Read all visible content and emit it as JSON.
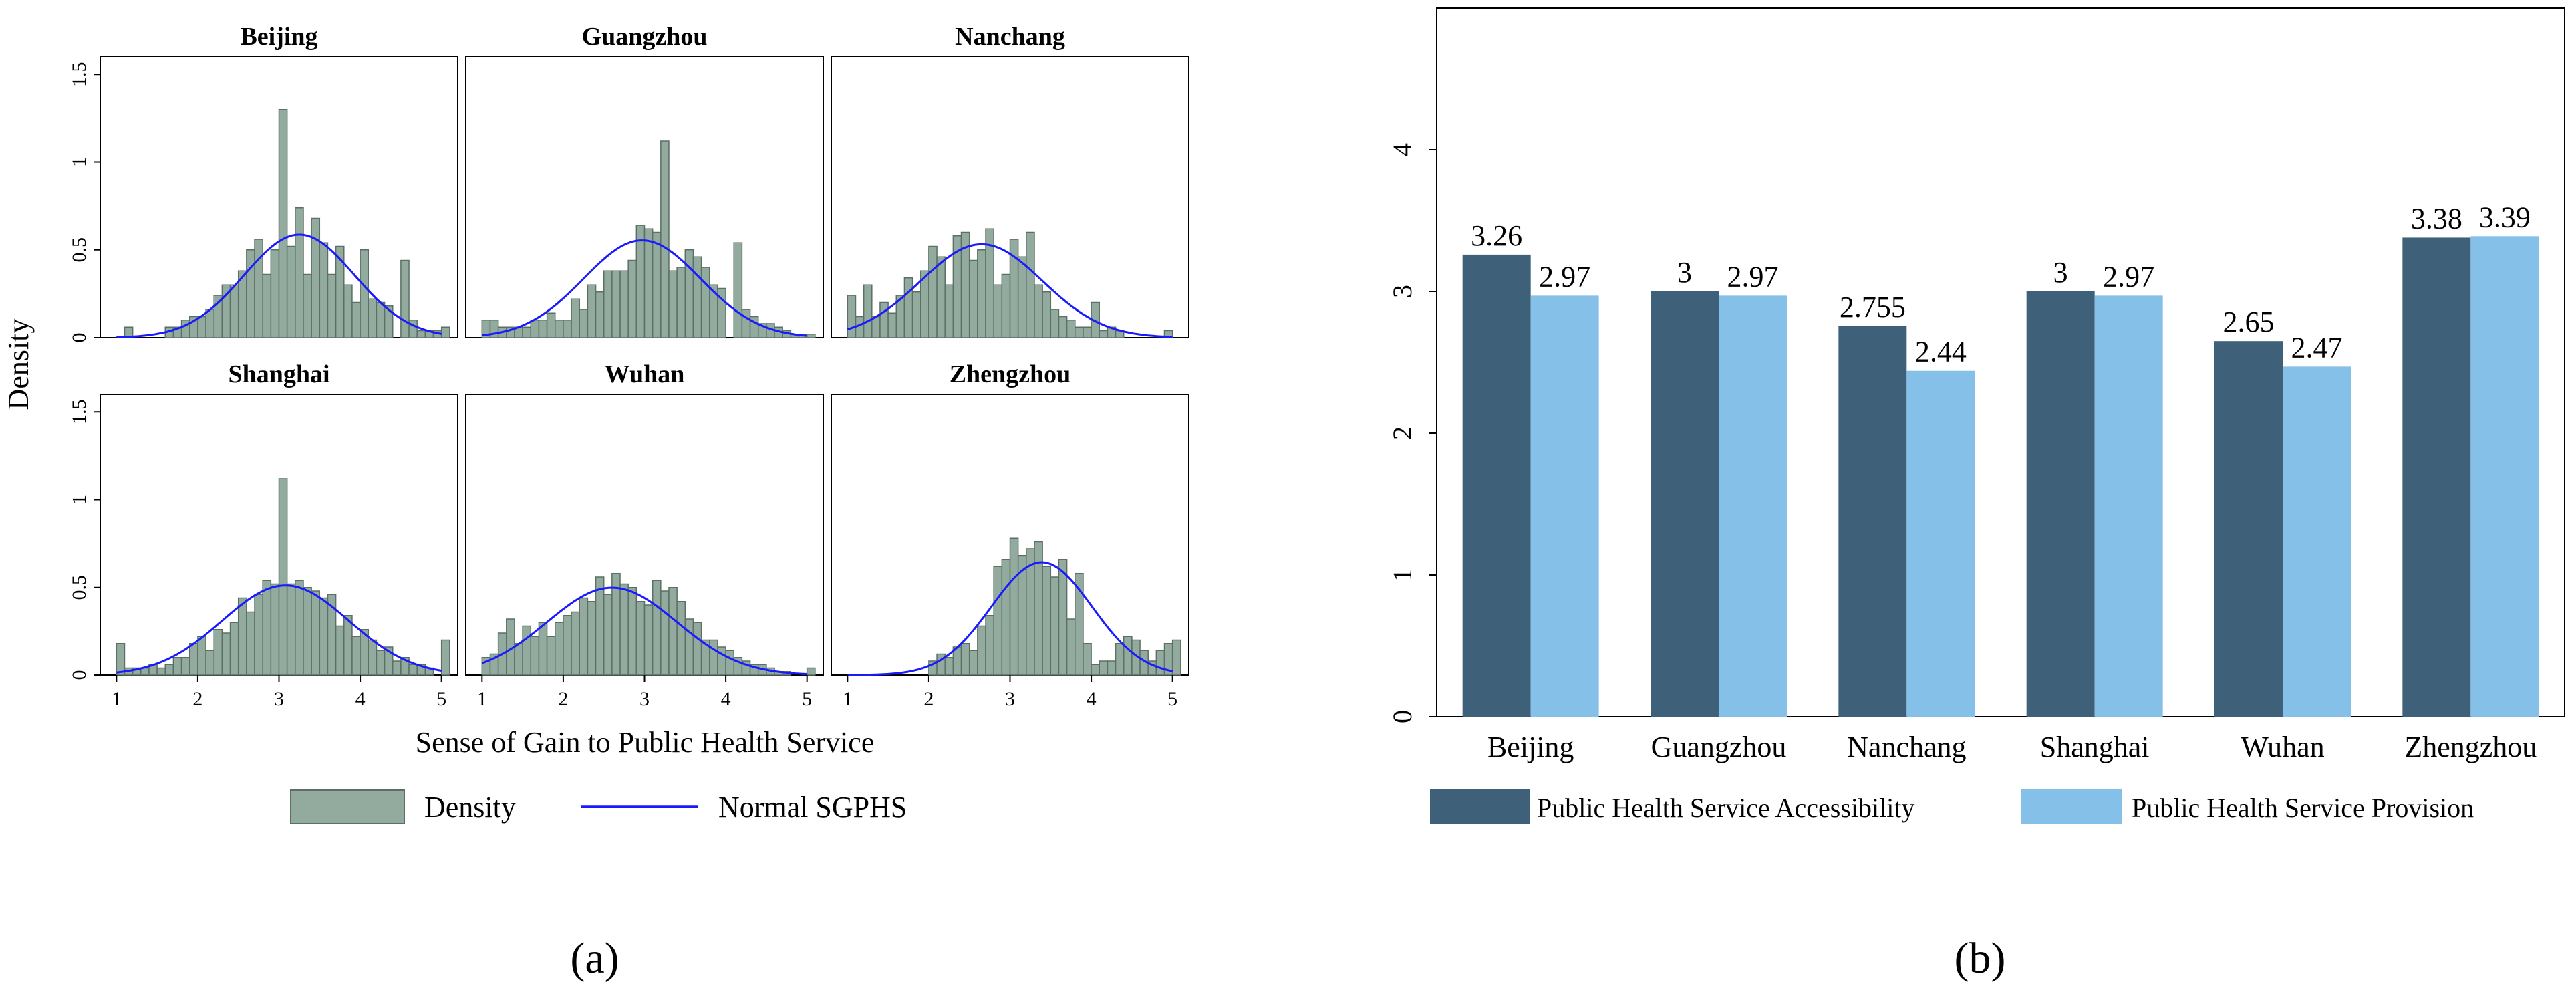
{
  "chart_data": [
    {
      "type": "histogram",
      "panel_label": "a",
      "ylabel": "Density",
      "xlabel": "Sense of Gain to Public Health Service",
      "x_ticks": [
        "1",
        "2",
        "3",
        "4",
        "5"
      ],
      "y_ticks": [
        "0",
        "0.5",
        "1",
        "1.5"
      ],
      "xlim": [
        0.8,
        5.2
      ],
      "ylim": [
        0,
        1.6
      ],
      "bin_start": 1.0,
      "bin_width": 0.1,
      "legend": {
        "bars": "Density",
        "line": "Normal SGPHS"
      },
      "colors": {
        "bar_fill": "#92ab9e",
        "bar_stroke": "#5b6f64",
        "line": "#1a1aff"
      },
      "panels": [
        {
          "title": "Beijing",
          "normal": {
            "mean": 3.25,
            "sd": 0.68
          },
          "densities": [
            0.0,
            0.06,
            0.0,
            0.0,
            0.0,
            0.0,
            0.06,
            0.06,
            0.1,
            0.12,
            0.12,
            0.16,
            0.24,
            0.3,
            0.3,
            0.38,
            0.5,
            0.56,
            0.36,
            0.5,
            1.3,
            0.52,
            0.74,
            0.36,
            0.68,
            0.54,
            0.36,
            0.52,
            0.3,
            0.2,
            0.5,
            0.22,
            0.2,
            0.18,
            0.0,
            0.44,
            0.1,
            0.04,
            0.04,
            0.04,
            0.06
          ]
        },
        {
          "title": "Guangzhou",
          "normal": {
            "mean": 2.97,
            "sd": 0.72
          },
          "densities": [
            0.1,
            0.1,
            0.06,
            0.06,
            0.06,
            0.06,
            0.1,
            0.1,
            0.14,
            0.1,
            0.1,
            0.22,
            0.16,
            0.3,
            0.26,
            0.38,
            0.38,
            0.38,
            0.44,
            0.64,
            0.62,
            0.6,
            1.12,
            0.38,
            0.4,
            0.5,
            0.46,
            0.4,
            0.3,
            0.28,
            0.0,
            0.54,
            0.16,
            0.12,
            0.08,
            0.08,
            0.06,
            0.04,
            0.02,
            0.02,
            0.02
          ]
        },
        {
          "title": "Nanchang",
          "normal": {
            "mean": 2.65,
            "sd": 0.75
          },
          "densities": [
            0.24,
            0.12,
            0.3,
            0.12,
            0.2,
            0.14,
            0.24,
            0.34,
            0.26,
            0.38,
            0.52,
            0.46,
            0.3,
            0.58,
            0.6,
            0.44,
            0.5,
            0.62,
            0.3,
            0.36,
            0.56,
            0.46,
            0.6,
            0.3,
            0.26,
            0.16,
            0.12,
            0.1,
            0.06,
            0.06,
            0.2,
            0.04,
            0.06,
            0.04,
            0.0,
            0.0,
            0.0,
            0.0,
            0.0,
            0.04,
            0.0
          ]
        },
        {
          "title": "Shanghai",
          "normal": {
            "mean": 3.08,
            "sd": 0.78
          },
          "densities": [
            0.18,
            0.04,
            0.04,
            0.04,
            0.06,
            0.04,
            0.06,
            0.1,
            0.1,
            0.18,
            0.22,
            0.14,
            0.26,
            0.24,
            0.3,
            0.44,
            0.36,
            0.46,
            0.54,
            0.52,
            1.12,
            0.52,
            0.54,
            0.5,
            0.48,
            0.44,
            0.46,
            0.28,
            0.34,
            0.22,
            0.26,
            0.2,
            0.14,
            0.16,
            0.08,
            0.1,
            0.06,
            0.06,
            0.04,
            0.0,
            0.2
          ]
        },
        {
          "title": "Wuhan",
          "normal": {
            "mean": 2.6,
            "sd": 0.8
          },
          "densities": [
            0.1,
            0.12,
            0.24,
            0.32,
            0.18,
            0.28,
            0.22,
            0.3,
            0.22,
            0.3,
            0.34,
            0.36,
            0.44,
            0.42,
            0.56,
            0.46,
            0.58,
            0.52,
            0.5,
            0.42,
            0.4,
            0.54,
            0.48,
            0.5,
            0.42,
            0.32,
            0.3,
            0.2,
            0.2,
            0.16,
            0.14,
            0.1,
            0.08,
            0.06,
            0.06,
            0.04,
            0.02,
            0.02,
            0.0,
            0.0,
            0.04
          ]
        },
        {
          "title": "Zhengzhou",
          "normal": {
            "mean": 3.39,
            "sd": 0.62
          },
          "densities": [
            0.0,
            0.0,
            0.0,
            0.0,
            0.0,
            0.0,
            0.0,
            0.0,
            0.0,
            0.0,
            0.08,
            0.12,
            0.1,
            0.16,
            0.18,
            0.14,
            0.28,
            0.34,
            0.62,
            0.66,
            0.78,
            0.68,
            0.72,
            0.76,
            0.62,
            0.56,
            0.66,
            0.32,
            0.58,
            0.18,
            0.06,
            0.08,
            0.08,
            0.18,
            0.22,
            0.2,
            0.14,
            0.08,
            0.14,
            0.18,
            0.2
          ]
        }
      ]
    },
    {
      "type": "bar",
      "panel_label": "b",
      "categories": [
        "Beijing",
        "Guangzhou",
        "Nanchang",
        "Shanghai",
        "Wuhan",
        "Zhengzhou"
      ],
      "ylim": [
        0,
        5
      ],
      "y_ticks": [
        "0",
        "1",
        "2",
        "3",
        "4"
      ],
      "series": [
        {
          "name": "Public Health Service Accessibility",
          "color": "#3e6078",
          "values": [
            3.26,
            3,
            2.755,
            3,
            2.65,
            3.38
          ],
          "labels": [
            "3.26",
            "3",
            "2.755",
            "3",
            "2.65",
            "3.38"
          ]
        },
        {
          "name": "Public Health Service Provision",
          "color": "#85c0e8",
          "values": [
            2.97,
            2.97,
            2.44,
            2.97,
            2.47,
            3.39
          ],
          "labels": [
            "2.97",
            "2.97",
            "2.44",
            "2.97",
            "2.47",
            "3.39"
          ]
        }
      ]
    }
  ]
}
